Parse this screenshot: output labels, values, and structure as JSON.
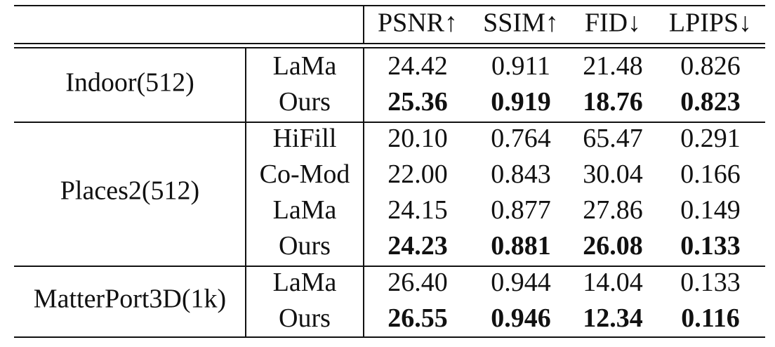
{
  "header": {
    "columns": [
      "PSNR↑",
      "SSIM↑",
      "FID↓",
      "LPIPS↓"
    ]
  },
  "groups": [
    {
      "name": "Indoor(512)",
      "rows": [
        {
          "method": "LaMa",
          "values": [
            "24.42",
            "0.911",
            "21.48",
            "0.826"
          ]
        },
        {
          "method": "Ours",
          "bold": true,
          "values": [
            "25.36",
            "0.919",
            "18.76",
            "0.823"
          ]
        }
      ]
    },
    {
      "name": "Places2(512)",
      "rows": [
        {
          "method": "HiFill",
          "values": [
            "20.10",
            "0.764",
            "65.47",
            "0.291"
          ]
        },
        {
          "method": "Co-Mod",
          "values": [
            "22.00",
            "0.843",
            "30.04",
            "0.166"
          ]
        },
        {
          "method": "LaMa",
          "values": [
            "24.15",
            "0.877",
            "27.86",
            "0.149"
          ]
        },
        {
          "method": "Ours",
          "bold": true,
          "values": [
            "24.23",
            "0.881",
            "26.08",
            "0.133"
          ]
        }
      ]
    },
    {
      "name": "MatterPort3D(1k)",
      "rows": [
        {
          "method": "LaMa",
          "values": [
            "26.40",
            "0.944",
            "14.04",
            "0.133"
          ]
        },
        {
          "method": "Ours",
          "bold": true,
          "values": [
            "26.55",
            "0.946",
            "12.34",
            "0.116"
          ]
        }
      ]
    }
  ]
}
